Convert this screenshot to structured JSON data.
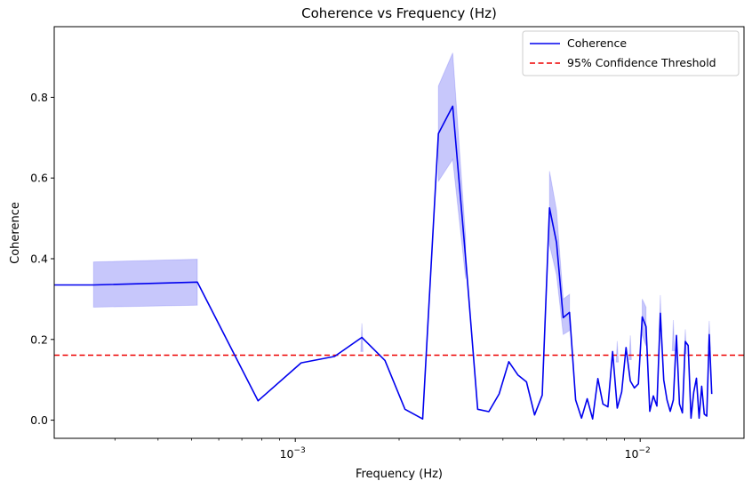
{
  "chart_data": {
    "type": "line",
    "title": "Coherence vs Frequency (Hz)",
    "xlabel": "Frequency (Hz)",
    "ylabel": "Coherence",
    "x_scale": "log",
    "xlim": [
      0.0002,
      0.02
    ],
    "ylim": [
      -0.045,
      0.975
    ],
    "x_ticks": [
      {
        "value": 0.001,
        "base": "10",
        "exp": "−3"
      },
      {
        "value": 0.01,
        "base": "10",
        "exp": "−2"
      }
    ],
    "y_ticks": [
      {
        "value": 0.0,
        "label": "0.0"
      },
      {
        "value": 0.2,
        "label": "0.2"
      },
      {
        "value": 0.4,
        "label": "0.4"
      },
      {
        "value": 0.6,
        "label": "0.6"
      },
      {
        "value": 0.8,
        "label": "0.8"
      }
    ],
    "grid": false,
    "legend_position": "top-right",
    "series": [
      {
        "name": "Coherence",
        "color": "#0000ee",
        "style": "solid",
        "x": [
          0.0002,
          0.00026,
          0.00052,
          0.00078,
          0.00104,
          0.0013,
          0.00156,
          0.00182,
          0.00208,
          0.00234,
          0.0026,
          0.00286,
          0.00312,
          0.00338,
          0.00364,
          0.0039,
          0.00416,
          0.00442,
          0.00468,
          0.00494,
          0.0052,
          0.00546,
          0.00572,
          0.00598,
          0.00624,
          0.0065,
          0.00676,
          0.00702,
          0.00728,
          0.00754,
          0.0078,
          0.00806,
          0.00832,
          0.00858,
          0.00884,
          0.0091,
          0.00936,
          0.00962,
          0.00988,
          0.01014,
          0.0104,
          0.01066,
          0.01092,
          0.01118,
          0.01144,
          0.0117,
          0.01196,
          0.01222,
          0.01248,
          0.01274,
          0.013,
          0.01326,
          0.01352,
          0.01378,
          0.01404,
          0.0143,
          0.01456,
          0.01482,
          0.01508,
          0.01534,
          0.0156,
          0.01586,
          0.01612
        ],
        "y": [
          0.335,
          0.335,
          0.342,
          0.048,
          0.142,
          0.158,
          0.205,
          0.148,
          0.027,
          0.003,
          0.71,
          0.778,
          0.4,
          0.027,
          0.021,
          0.065,
          0.145,
          0.112,
          0.095,
          0.013,
          0.062,
          0.526,
          0.44,
          0.254,
          0.267,
          0.05,
          0.005,
          0.053,
          0.003,
          0.103,
          0.04,
          0.033,
          0.17,
          0.03,
          0.07,
          0.18,
          0.097,
          0.08,
          0.09,
          0.256,
          0.232,
          0.022,
          0.06,
          0.035,
          0.265,
          0.1,
          0.05,
          0.022,
          0.05,
          0.21,
          0.04,
          0.018,
          0.195,
          0.185,
          0.005,
          0.07,
          0.104,
          0.005,
          0.084,
          0.015,
          0.01,
          0.212,
          0.065
        ]
      },
      {
        "name": "95% Confidence Threshold",
        "color": "#ee0000",
        "style": "dashed",
        "y_constant": 0.161
      }
    ],
    "confidence_band": {
      "color": "#0000ee",
      "opacity": 0.22,
      "x": [
        0.00026,
        0.00052,
        0.00156,
        0.0026,
        0.00286,
        0.00312,
        0.00546,
        0.00572,
        0.00598,
        0.00624,
        0.00858,
        0.00936,
        0.01014,
        0.0104,
        0.01144,
        0.01248,
        0.01352,
        0.01586
      ],
      "upper": [
        0.392,
        0.399,
        0.24,
        0.828,
        0.91,
        0.45,
        0.617,
        0.52,
        0.3,
        0.312,
        0.196,
        0.21,
        0.3,
        0.28,
        0.31,
        0.248,
        0.225,
        0.246
      ],
      "lower": [
        0.28,
        0.285,
        0.17,
        0.592,
        0.646,
        0.35,
        0.435,
        0.36,
        0.212,
        0.222,
        0.144,
        0.15,
        0.21,
        0.184,
        0.22,
        0.172,
        0.165,
        0.178
      ]
    }
  }
}
